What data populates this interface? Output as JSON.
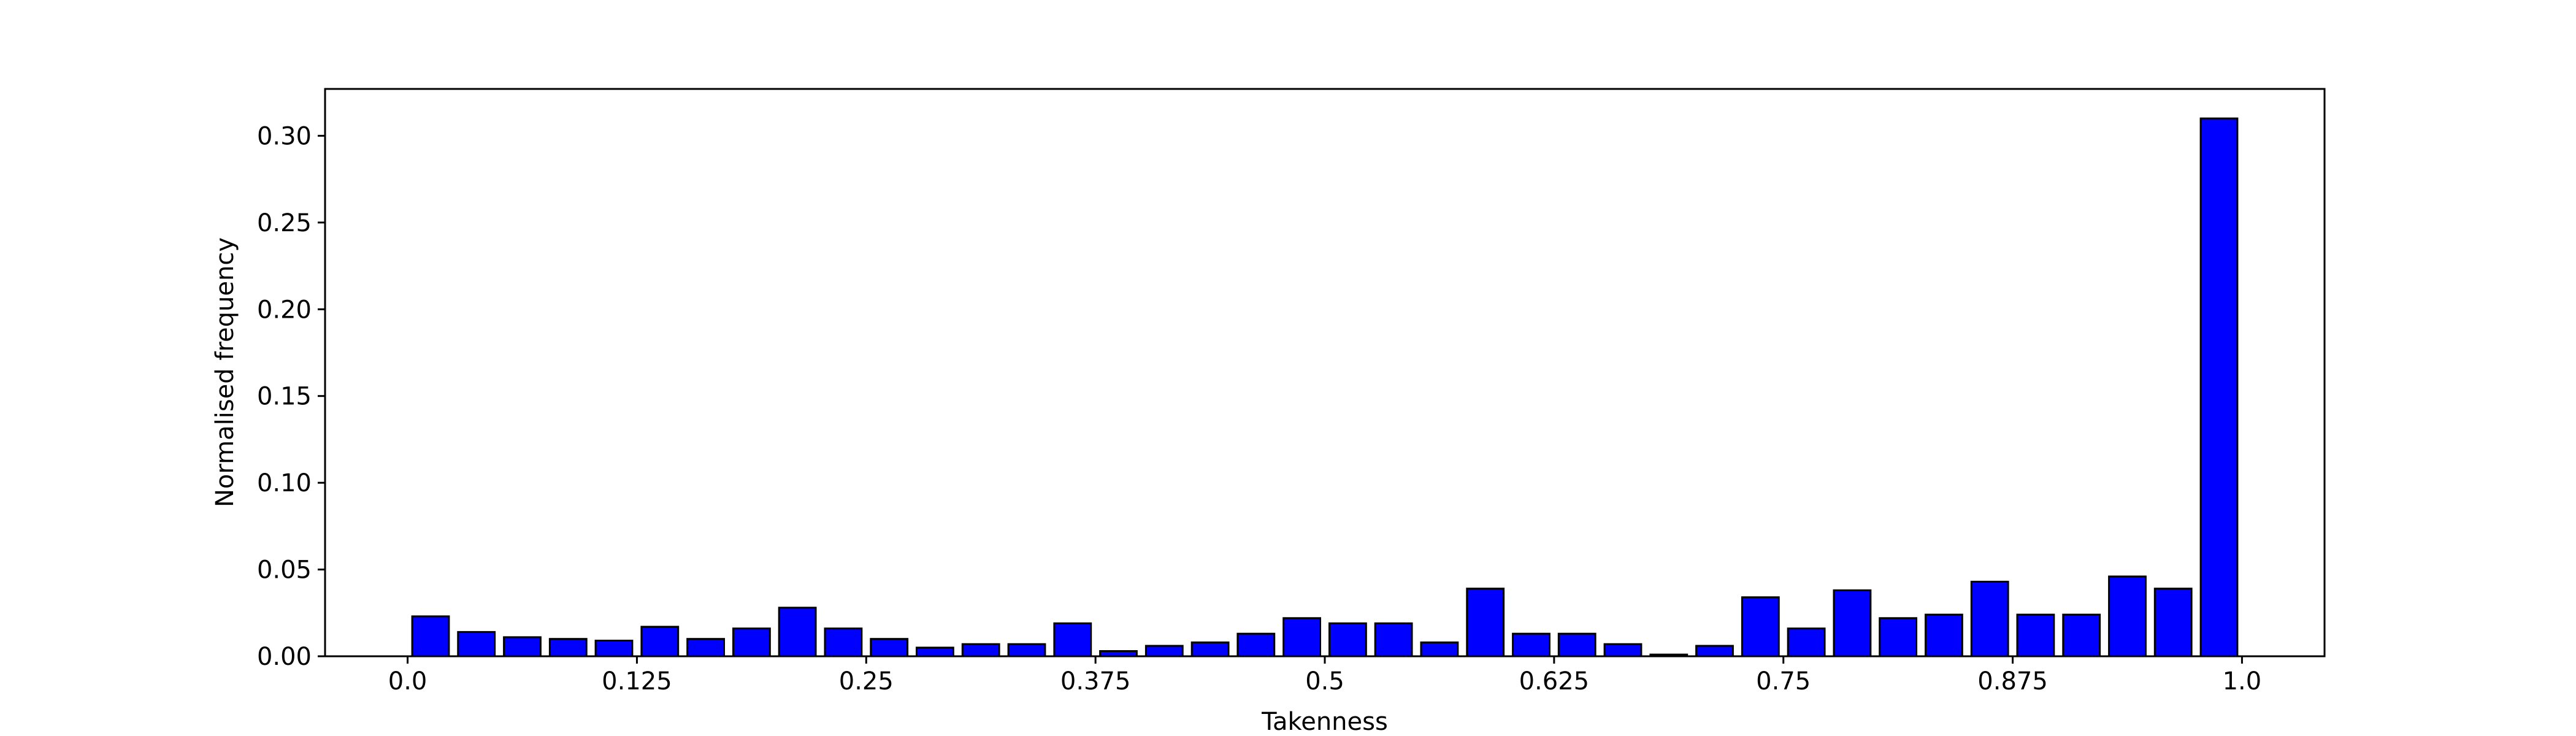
{
  "chart_data": {
    "type": "bar",
    "xlabel": "Takenness",
    "ylabel": "Normalised frequency",
    "xlim": [
      -0.045,
      1.045
    ],
    "ylim": [
      0,
      0.327
    ],
    "xticks": [
      0.0,
      0.125,
      0.25,
      0.375,
      0.5,
      0.625,
      0.75,
      0.875,
      1.0
    ],
    "xtick_labels": [
      "0.0",
      "0.125",
      "0.25",
      "0.375",
      "0.5",
      "0.625",
      "0.75",
      "0.875",
      "1.0"
    ],
    "yticks": [
      0.0,
      0.05,
      0.1,
      0.15,
      0.2,
      0.25,
      0.3
    ],
    "ytick_labels": [
      "0.00",
      "0.05",
      "0.10",
      "0.15",
      "0.20",
      "0.25",
      "0.30"
    ],
    "bar_width": 0.02,
    "x": [
      0.0125,
      0.0375,
      0.0625,
      0.0875,
      0.1125,
      0.1375,
      0.1625,
      0.1875,
      0.2125,
      0.2375,
      0.2625,
      0.2875,
      0.3125,
      0.3375,
      0.3625,
      0.3875,
      0.4125,
      0.4375,
      0.4625,
      0.4875,
      0.5125,
      0.5375,
      0.5625,
      0.5875,
      0.6125,
      0.6375,
      0.6625,
      0.6875,
      0.7125,
      0.7375,
      0.7625,
      0.7875,
      0.8125,
      0.8375,
      0.8625,
      0.8875,
      0.9125,
      0.9375,
      0.9625,
      0.9875
    ],
    "values": [
      0.023,
      0.014,
      0.011,
      0.01,
      0.009,
      0.017,
      0.01,
      0.016,
      0.028,
      0.016,
      0.01,
      0.005,
      0.007,
      0.007,
      0.019,
      0.003,
      0.006,
      0.008,
      0.013,
      0.022,
      0.019,
      0.019,
      0.008,
      0.039,
      0.013,
      0.013,
      0.007,
      0.001,
      0.006,
      0.034,
      0.016,
      0.038,
      0.022,
      0.024,
      0.043,
      0.024,
      0.024,
      0.046,
      0.039,
      0.31
    ],
    "bar_color": "#0000ff",
    "edge_color": "#000000",
    "grid": false,
    "legend": false
  }
}
